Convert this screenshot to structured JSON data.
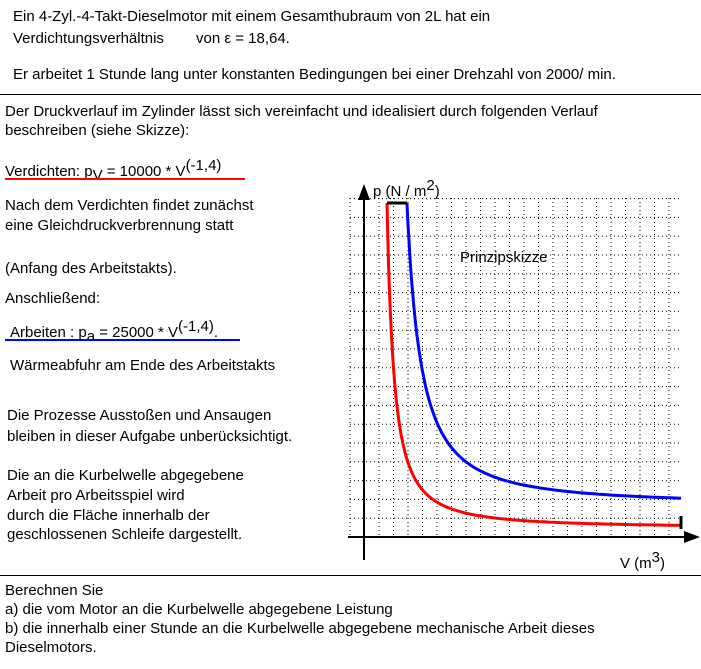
{
  "intro": {
    "line1": "Ein 4-Zyl.-4-Takt-Dieselmotor mit einem Gesamthubraum von 2L hat ein",
    "line2_a": "Verdichtungsverhältnis",
    "line2_b": "von ε = 18,64.",
    "line3": "Er arbeitet 1 Stunde lang unter konstanten Bedingungen bei einer Drehzahl von 2000/ min."
  },
  "description": {
    "line1": "Der Druckverlauf im Zylinder lässt sich vereinfacht und idealisiert durch folgenden Verlauf",
    "line2": "beschreiben (siehe Skizze):"
  },
  "compression": {
    "prefix": "Verdichten: p",
    "sub": "V",
    "middle": " = 10000 * V",
    "exp": "(-1,4)"
  },
  "combustion": {
    "line1": "Nach dem Verdichten findet zunächst",
    "line2": "eine Gleichdruckverbrennung statt",
    "line3": "(Anfang des Arbeitstakts)."
  },
  "subsequently": "Anschließend:",
  "work": {
    "prefix": "Arbeiten : p",
    "sub": "a",
    "middle": " = 25000 * V",
    "exp": "(-1,4)",
    "suffix": "."
  },
  "heat": "Wärmeabfuhr am Ende des Arbeitstakts",
  "processes": {
    "line1": "Die Prozesse Ausstoßen und Ansaugen",
    "line2": "bleiben in dieser Aufgabe unberücksichtigt."
  },
  "workdesc": {
    "line1": "Die an die Kurbelwelle abgegebene",
    "line2": "Arbeit pro Arbeitsspiel wird",
    "line3": "durch die Fläche innerhalb der",
    "line4": "geschlossenen Schleife dargestellt."
  },
  "diagram": {
    "y_axis_label_a": "p (N / m",
    "y_axis_label_exp": "2",
    "y_axis_label_b": ")",
    "x_axis_label_a": "V (m",
    "x_axis_label_exp": "3",
    "x_axis_label_b": ")",
    "sketch_label": "Prinzipskizze",
    "colors": {
      "compression": "#ff0000",
      "expansion": "#0000ff",
      "top": "#000000",
      "heat_removal": "#000000"
    }
  },
  "tasks": {
    "heading": "Berechnen Sie",
    "a": "a) die vom Motor an die Kurbelwelle abgegebene Leistung",
    "b1": "b) die innerhalb einer Stunde an die Kurbelwelle abgegebene mechanische Arbeit dieses",
    "b2": "Dieselmotors."
  }
}
